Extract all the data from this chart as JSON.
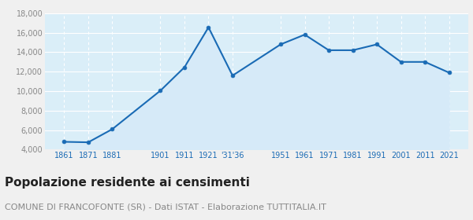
{
  "x_positions": [
    1861,
    1871,
    1881,
    1901,
    1911,
    1921,
    1931,
    1951,
    1961,
    1971,
    1981,
    1991,
    2001,
    2011,
    2021
  ],
  "y_values": [
    4800,
    4750,
    6100,
    10050,
    12450,
    16550,
    11600,
    14800,
    15800,
    14200,
    14200,
    14800,
    13000,
    13000,
    11900
  ],
  "line_color": "#1a6bb5",
  "fill_color": "#d6eaf8",
  "marker": "o",
  "marker_size": 3.5,
  "line_width": 1.5,
  "title": "Popolazione residente ai censimenti",
  "subtitle": "COMUNE DI FRANCOFONTE (SR) - Dati ISTAT - Elaborazione TUTTITALIA.IT",
  "title_fontsize": 11,
  "subtitle_fontsize": 8,
  "ylim": [
    4000,
    18000
  ],
  "yticks": [
    4000,
    6000,
    8000,
    10000,
    12000,
    14000,
    16000,
    18000
  ],
  "ytick_labels": [
    "4,000",
    "6,000",
    "8,000",
    "10,000",
    "12,000",
    "14,000",
    "16,000",
    "18,000"
  ],
  "plot_bg_color": "#daeef8",
  "outer_bg_color": "#f0f0f0",
  "grid_color": "#ffffff",
  "tick_label_color": "#1a6bb5",
  "ytick_label_color": "#888888",
  "title_color": "#222222",
  "subtitle_color": "#888888",
  "x_tick_positions": [
    1861,
    1871,
    1881,
    1901,
    1911,
    1921,
    1931,
    1951,
    1961,
    1971,
    1981,
    1991,
    2001,
    2011,
    2021
  ],
  "x_tick_labels": [
    "1861",
    "1871",
    "1881",
    "1901",
    "1911",
    "1921",
    "'31'36",
    "1951",
    "1961",
    "1971",
    "1981",
    "1991",
    "2001",
    "2011",
    "2021"
  ],
  "xlim": [
    1853,
    2029
  ]
}
